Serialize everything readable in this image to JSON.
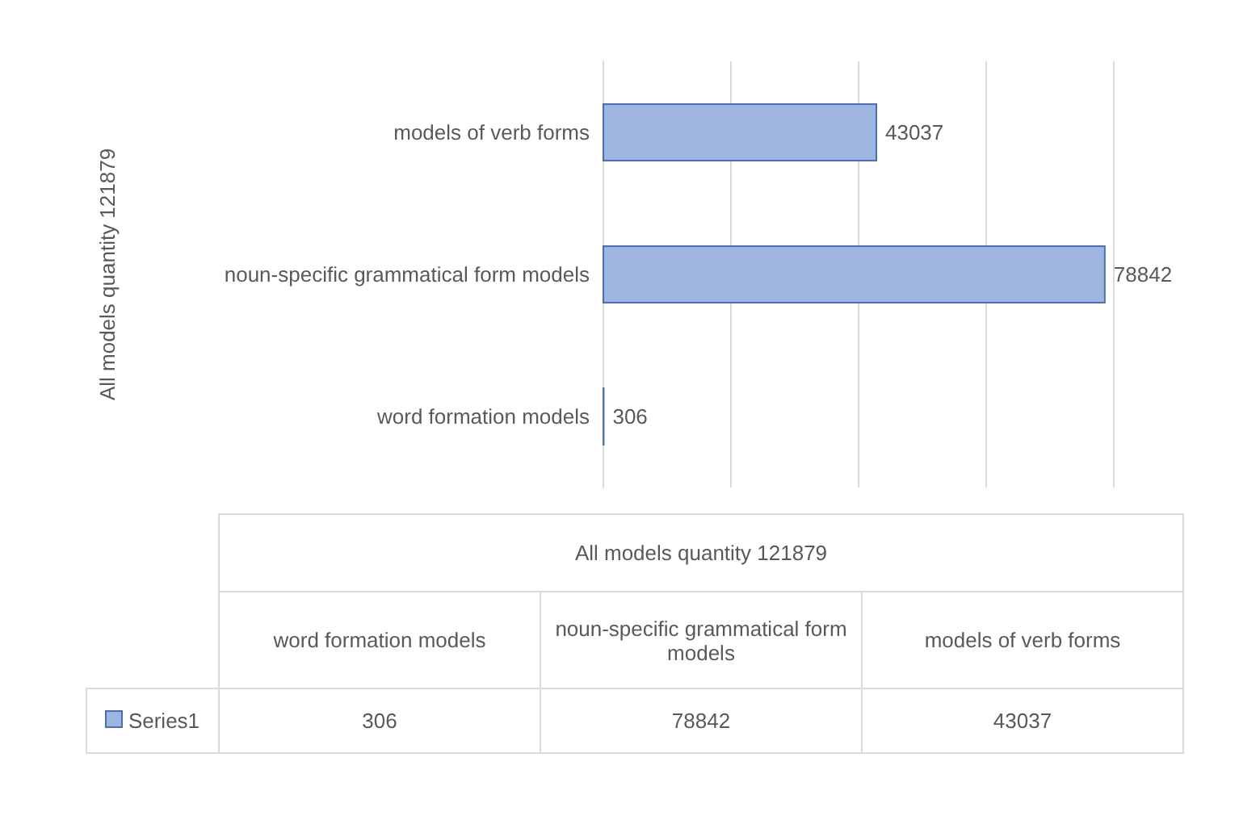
{
  "chart_data": {
    "type": "bar",
    "orientation": "horizontal",
    "ylabel": "All models quantity 121879",
    "categories": [
      "models of verb forms",
      "noun-specific grammatical form models",
      "word formation models"
    ],
    "series": [
      {
        "name": "Series1",
        "color": "#9db5e0",
        "values": [
          43037,
          78842,
          306
        ],
        "value_labels": [
          "43037",
          "78842",
          "306"
        ]
      }
    ],
    "grid": "x",
    "tick_labels": "y"
  }
}
